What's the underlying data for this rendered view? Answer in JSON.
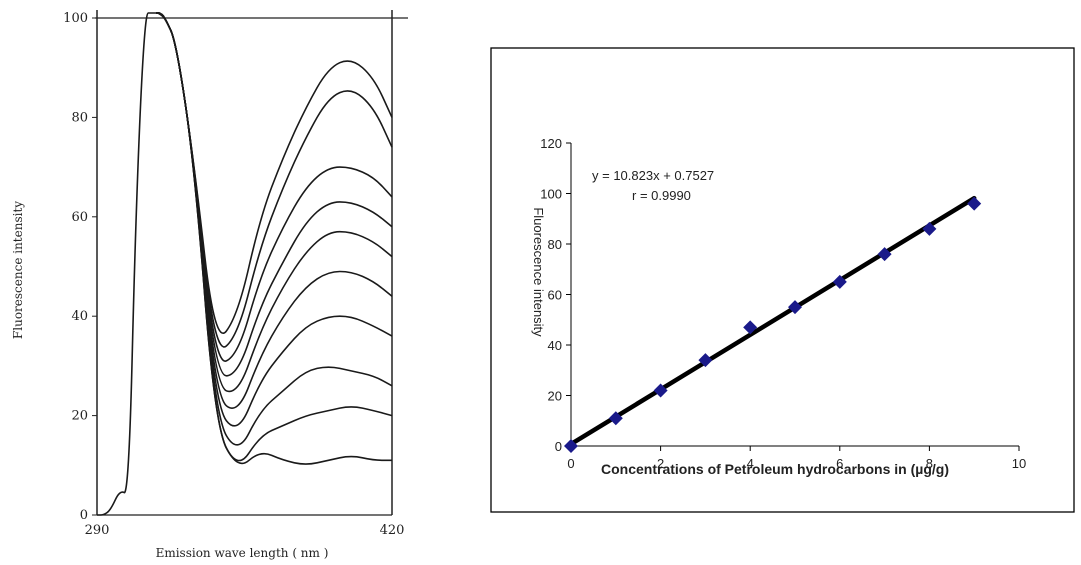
{
  "chart_data": [
    {
      "type": "line",
      "title": "",
      "xlabel": "Emission wave length ( nm )",
      "ylabel": "Fluorescence intensity",
      "xlim": [
        290,
        420
      ],
      "ylim": [
        0,
        100
      ],
      "x_ticks": [
        "290",
        "420"
      ],
      "y_ticks": [
        "0",
        "20",
        "40",
        "60",
        "80",
        "100"
      ],
      "grid": false,
      "legend": "none",
      "series": [
        {
          "x": [
            290,
            293,
            296,
            300,
            304,
            307,
            311,
            314,
            316,
            317,
            320,
            325,
            333,
            342,
            352,
            362,
            372,
            382,
            392,
            402,
            412,
            420
          ],
          "y": [
            0,
            0,
            1,
            5,
            4,
            60,
            101,
            101,
            101,
            101,
            100,
            95,
            70,
            18,
            9,
            13,
            11,
            10,
            11,
            12,
            11,
            11
          ]
        },
        {
          "x": [
            316,
            318,
            320,
            325,
            333,
            342,
            352,
            362,
            372,
            382,
            392,
            402,
            412,
            420
          ],
          "y": [
            101,
            101,
            100,
            95,
            70,
            18,
            9,
            16,
            18,
            20,
            21,
            22,
            21,
            20
          ]
        },
        {
          "x": [
            316,
            318,
            320,
            325,
            333,
            342,
            352,
            362,
            372,
            382,
            392,
            402,
            412,
            420
          ],
          "y": [
            101,
            101,
            100,
            95,
            70,
            20,
            12,
            21,
            25,
            29,
            30,
            29,
            28,
            26
          ]
        },
        {
          "x": [
            316,
            318,
            320,
            325,
            333,
            342,
            352,
            362,
            372,
            382,
            392,
            402,
            412,
            420
          ],
          "y": [
            101,
            101,
            100,
            95,
            70,
            22,
            16,
            27,
            33,
            38,
            40,
            40,
            38,
            36
          ]
        },
        {
          "x": [
            316,
            318,
            320,
            325,
            333,
            342,
            352,
            362,
            372,
            382,
            392,
            402,
            412,
            420
          ],
          "y": [
            101,
            101,
            100,
            95,
            70,
            24,
            20,
            32,
            40,
            46,
            49,
            49,
            47,
            44
          ]
        },
        {
          "x": [
            316,
            318,
            320,
            325,
            333,
            342,
            352,
            362,
            372,
            382,
            392,
            402,
            412,
            420
          ],
          "y": [
            101,
            101,
            100,
            95,
            70,
            26,
            24,
            37,
            46,
            53,
            57,
            57,
            55,
            52
          ]
        },
        {
          "x": [
            316,
            318,
            320,
            325,
            333,
            342,
            352,
            362,
            372,
            382,
            392,
            402,
            412,
            420
          ],
          "y": [
            101,
            101,
            100,
            95,
            70,
            28,
            28,
            42,
            51,
            59,
            63,
            63,
            61,
            58
          ]
        },
        {
          "x": [
            316,
            318,
            320,
            325,
            333,
            342,
            352,
            362,
            372,
            382,
            392,
            402,
            412,
            420
          ],
          "y": [
            101,
            101,
            100,
            95,
            70,
            30,
            32,
            48,
            58,
            66,
            70,
            70,
            68,
            64
          ]
        },
        {
          "x": [
            316,
            318,
            320,
            325,
            333,
            342,
            352,
            362,
            372,
            382,
            392,
            402,
            412,
            420
          ],
          "y": [
            101,
            101,
            100,
            95,
            70,
            32,
            36,
            54,
            66,
            76,
            84,
            86,
            82,
            74
          ]
        },
        {
          "x": [
            316,
            318,
            320,
            325,
            333,
            342,
            352,
            362,
            372,
            382,
            392,
            402,
            412,
            420
          ],
          "y": [
            101,
            101,
            100,
            95,
            70,
            34,
            40,
            60,
            72,
            82,
            90,
            92,
            88,
            80
          ]
        }
      ]
    },
    {
      "type": "scatter",
      "title": "",
      "xlabel": "Concentrations of Petroleum  hydrocarbons in (µg/g)",
      "ylabel": "Fluorescence intensity",
      "xlim": [
        0,
        10
      ],
      "ylim": [
        0,
        120
      ],
      "x_ticks": [
        "0",
        "2",
        "4",
        "6",
        "8",
        "10"
      ],
      "y_ticks": [
        "0",
        "20",
        "40",
        "60",
        "80",
        "100",
        "120"
      ],
      "grid": false,
      "legend": "none",
      "annotation": [
        "y = 10.823x + 0.7527",
        "r = 0.9990"
      ],
      "series": [
        {
          "x": [
            0,
            1,
            2,
            3,
            4,
            5,
            6,
            7,
            8,
            9
          ],
          "y": [
            0,
            11,
            22,
            34,
            47,
            55,
            65,
            76,
            86,
            96
          ]
        }
      ],
      "trendline": {
        "slope": 10.823,
        "intercept": 0.7527,
        "x_range": [
          0,
          9
        ]
      },
      "colors": {
        "marker": "#1a1a8a",
        "trendline": "#000000"
      }
    }
  ]
}
